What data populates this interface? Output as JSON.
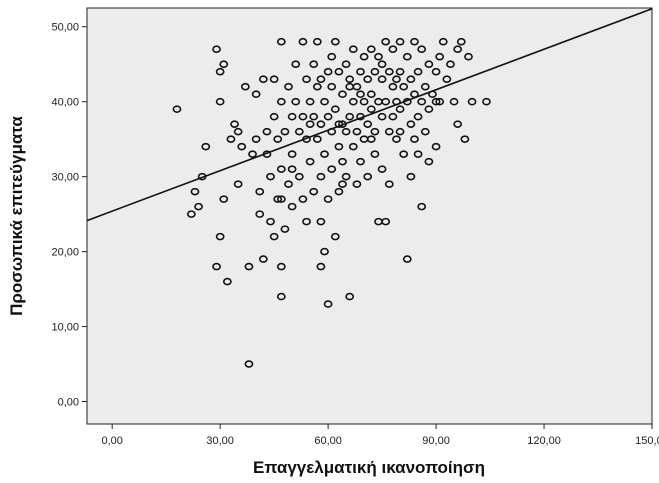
{
  "chart_data": {
    "type": "scatter",
    "title": "",
    "xlabel": "Επαγγελματική ικανοποίηση",
    "ylabel": "Προσωπικά επιτεύγματα",
    "xlim": [
      -7,
      150
    ],
    "ylim": [
      -3,
      52.5
    ],
    "x_ticks": [
      "0,00",
      "30,00",
      "60,00",
      "90,00",
      "120,00",
      "150,00"
    ],
    "x_tick_values": [
      0,
      30,
      60,
      90,
      120,
      150
    ],
    "y_ticks": [
      "0,00",
      "10,00",
      "20,00",
      "30,00",
      "40,00",
      "50,00"
    ],
    "y_tick_values": [
      0,
      10,
      20,
      30,
      40,
      50
    ],
    "grid": false,
    "legend": "none",
    "fit_line": {
      "intercept": 25.4,
      "slope": 0.18
    },
    "colors": {
      "plot_background": "#ececec",
      "marker": "#111111",
      "line": "#111111"
    },
    "points": [
      [
        18,
        39
      ],
      [
        22,
        25
      ],
      [
        23,
        28
      ],
      [
        24,
        26
      ],
      [
        25,
        30
      ],
      [
        26,
        34
      ],
      [
        29,
        47
      ],
      [
        30,
        44
      ],
      [
        30,
        40
      ],
      [
        31,
        45
      ],
      [
        29,
        18
      ],
      [
        30,
        22
      ],
      [
        31,
        27
      ],
      [
        32,
        16
      ],
      [
        33,
        35
      ],
      [
        34,
        37
      ],
      [
        35,
        36
      ],
      [
        35,
        29
      ],
      [
        36,
        34
      ],
      [
        37,
        42
      ],
      [
        38,
        18
      ],
      [
        38,
        5
      ],
      [
        39,
        33
      ],
      [
        40,
        41
      ],
      [
        40,
        35
      ],
      [
        41,
        28
      ],
      [
        41,
        25
      ],
      [
        42,
        19
      ],
      [
        42,
        43
      ],
      [
        43,
        36
      ],
      [
        43,
        33
      ],
      [
        44,
        30
      ],
      [
        44,
        24
      ],
      [
        45,
        43
      ],
      [
        45,
        38
      ],
      [
        45,
        22
      ],
      [
        46,
        35
      ],
      [
        46,
        27
      ],
      [
        47,
        48
      ],
      [
        47,
        40
      ],
      [
        47,
        31
      ],
      [
        47,
        18
      ],
      [
        47,
        14
      ],
      [
        48,
        36
      ],
      [
        48,
        23
      ],
      [
        49,
        42
      ],
      [
        49,
        29
      ],
      [
        50,
        38
      ],
      [
        50,
        33
      ],
      [
        50,
        26
      ],
      [
        51,
        40
      ],
      [
        51,
        45
      ],
      [
        52,
        36
      ],
      [
        52,
        30
      ],
      [
        53,
        38
      ],
      [
        53,
        48
      ],
      [
        53,
        27
      ],
      [
        54,
        43
      ],
      [
        54,
        35
      ],
      [
        54,
        24
      ],
      [
        55,
        40
      ],
      [
        55,
        32
      ],
      [
        56,
        45
      ],
      [
        56,
        38
      ],
      [
        56,
        28
      ],
      [
        57,
        42
      ],
      [
        57,
        35
      ],
      [
        57,
        48
      ],
      [
        58,
        37
      ],
      [
        58,
        30
      ],
      [
        58,
        24
      ],
      [
        58,
        18
      ],
      [
        59,
        40
      ],
      [
        59,
        33
      ],
      [
        59,
        20
      ],
      [
        60,
        44
      ],
      [
        60,
        38
      ],
      [
        60,
        27
      ],
      [
        60,
        13
      ],
      [
        61,
        36
      ],
      [
        61,
        42
      ],
      [
        61,
        31
      ],
      [
        62,
        48
      ],
      [
        62,
        39
      ],
      [
        62,
        22
      ],
      [
        63,
        34
      ],
      [
        63,
        44
      ],
      [
        63,
        28
      ],
      [
        64,
        37
      ],
      [
        64,
        41
      ],
      [
        64,
        32
      ],
      [
        65,
        45
      ],
      [
        65,
        36
      ],
      [
        65,
        30
      ],
      [
        66,
        43
      ],
      [
        66,
        38
      ],
      [
        66,
        14
      ],
      [
        67,
        40
      ],
      [
        67,
        34
      ],
      [
        67,
        47
      ],
      [
        68,
        36
      ],
      [
        68,
        42
      ],
      [
        68,
        29
      ],
      [
        69,
        38
      ],
      [
        69,
        44
      ],
      [
        69,
        32
      ],
      [
        70,
        40
      ],
      [
        70,
        46
      ],
      [
        70,
        35
      ],
      [
        71,
        37
      ],
      [
        71,
        43
      ],
      [
        71,
        30
      ],
      [
        72,
        41
      ],
      [
        72,
        39
      ],
      [
        72,
        47
      ],
      [
        73,
        36
      ],
      [
        73,
        44
      ],
      [
        73,
        33
      ],
      [
        74,
        40
      ],
      [
        74,
        46
      ],
      [
        74,
        24
      ],
      [
        75,
        38
      ],
      [
        75,
        43
      ],
      [
        75,
        31
      ],
      [
        76,
        48
      ],
      [
        76,
        40
      ],
      [
        76,
        24
      ],
      [
        77,
        44
      ],
      [
        77,
        36
      ],
      [
        77,
        29
      ],
      [
        78,
        42
      ],
      [
        78,
        38
      ],
      [
        78,
        47
      ],
      [
        79,
        40
      ],
      [
        79,
        35
      ],
      [
        80,
        44
      ],
      [
        80,
        39
      ],
      [
        80,
        48
      ],
      [
        81,
        42
      ],
      [
        81,
        33
      ],
      [
        82,
        46
      ],
      [
        82,
        40
      ],
      [
        82,
        19
      ],
      [
        83,
        37
      ],
      [
        83,
        43
      ],
      [
        83,
        30
      ],
      [
        84,
        41
      ],
      [
        84,
        48
      ],
      [
        84,
        35
      ],
      [
        85,
        44
      ],
      [
        85,
        38
      ],
      [
        86,
        40
      ],
      [
        86,
        47
      ],
      [
        86,
        26
      ],
      [
        87,
        42
      ],
      [
        87,
        36
      ],
      [
        88,
        45
      ],
      [
        88,
        39
      ],
      [
        88,
        32
      ],
      [
        89,
        41
      ],
      [
        90,
        44
      ],
      [
        90,
        40
      ],
      [
        90,
        34
      ],
      [
        91,
        46
      ],
      [
        91,
        40
      ],
      [
        92,
        48
      ],
      [
        93,
        43
      ],
      [
        94,
        45
      ],
      [
        95,
        40
      ],
      [
        96,
        37
      ],
      [
        96,
        47
      ],
      [
        97,
        48
      ],
      [
        98,
        35
      ],
      [
        99,
        46
      ],
      [
        100,
        40
      ],
      [
        104,
        40
      ],
      [
        66,
        42
      ],
      [
        72,
        35
      ],
      [
        58,
        43
      ],
      [
        63,
        37
      ],
      [
        69,
        41
      ],
      [
        75,
        45
      ],
      [
        80,
        36
      ],
      [
        55,
        37
      ],
      [
        50,
        31
      ],
      [
        47,
        27
      ],
      [
        64,
        29
      ],
      [
        79,
        43
      ],
      [
        85,
        33
      ],
      [
        61,
        46
      ]
    ]
  }
}
